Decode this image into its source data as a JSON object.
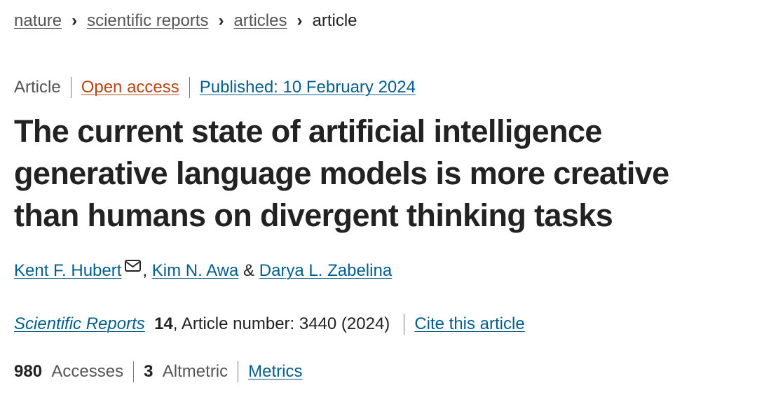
{
  "breadcrumb": [
    "nature",
    "scientific reports",
    "articles",
    "article"
  ],
  "meta": {
    "type": "Article",
    "access": "Open access",
    "published": "Published: 10 February 2024"
  },
  "title_lines": [
    "The current state of artificial intelligence",
    "generative language models is more creative",
    "than humans on divergent thinking tasks"
  ],
  "authors": [
    "Kent F. Hubert",
    "Kim N. Awa",
    "Darya L. Zabelina"
  ],
  "author_separators": [
    ",",
    "&"
  ],
  "citation": {
    "journal": "Scientific Reports",
    "volume": 14,
    "details": ", Article number: 3440 (2024)",
    "cite": "Cite this article"
  },
  "metrics": {
    "accesses": 980,
    "accesses_label": "Accesses",
    "altmetric": 3,
    "altmetric_label": "Altmetric",
    "link": "Metrics"
  }
}
